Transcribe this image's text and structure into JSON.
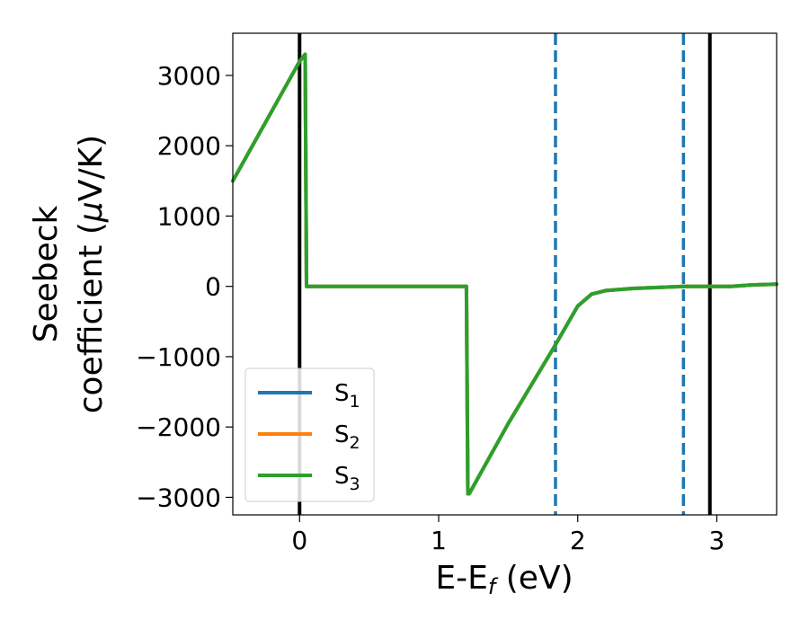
{
  "chart_data": {
    "type": "line",
    "xlabel": "E-E",
    "xlabel_sub": "f",
    "xlabel_unit": " (eV)",
    "ylabel_line1": "Seebeck",
    "ylabel_line2_prefix": "coefficient  (",
    "ylabel_mu": "μ",
    "ylabel_line2_suffix": "V/K)",
    "xlim": [
      -0.48,
      3.43
    ],
    "ylim": [
      -3250,
      3600
    ],
    "x_ticks": [
      0,
      1,
      2,
      3
    ],
    "x_tick_labels": [
      "0",
      "1",
      "2",
      "3"
    ],
    "y_ticks": [
      -3000,
      -2000,
      -1000,
      0,
      1000,
      2000,
      3000
    ],
    "y_tick_labels": [
      "−3000",
      "−2000",
      "−1000",
      "0",
      "1000",
      "2000",
      "3000"
    ],
    "grid": false,
    "legend_position": "lower-left",
    "series": [
      {
        "name": "S",
        "subscript": "1",
        "color": "#1f77b4",
        "x": [
          -0.48,
          0.0,
          0.04,
          0.05,
          0.1,
          0.5,
          1.0,
          1.2,
          1.21,
          1.22,
          1.5,
          1.84,
          2.0,
          2.1,
          2.2,
          2.4,
          2.76,
          2.95,
          3.1,
          3.25,
          3.43
        ],
        "y": [
          1500,
          3200,
          3300,
          0,
          0,
          0,
          0,
          0,
          -2950,
          -2950,
          -1950,
          -830,
          -280,
          -110,
          -60,
          -30,
          0,
          0,
          0,
          20,
          30
        ]
      },
      {
        "name": "S",
        "subscript": "2",
        "color": "#ff7f0e",
        "x": [
          -0.48,
          0.0,
          0.04,
          0.05,
          0.1,
          0.5,
          1.0,
          1.2,
          1.21,
          1.22,
          1.5,
          1.84,
          2.0,
          2.1,
          2.2,
          2.4,
          2.76,
          2.95,
          3.1,
          3.25,
          3.43
        ],
        "y": [
          1500,
          3200,
          3300,
          0,
          0,
          0,
          0,
          0,
          -2950,
          -2950,
          -1950,
          -830,
          -280,
          -110,
          -60,
          -30,
          0,
          0,
          0,
          20,
          30
        ]
      },
      {
        "name": "S",
        "subscript": "3",
        "color": "#2ca02c",
        "x": [
          -0.48,
          0.0,
          0.04,
          0.05,
          0.1,
          0.5,
          1.0,
          1.2,
          1.21,
          1.22,
          1.5,
          1.84,
          2.0,
          2.1,
          2.2,
          2.4,
          2.76,
          2.95,
          3.1,
          3.25,
          3.43
        ],
        "y": [
          1500,
          3200,
          3300,
          0,
          0,
          0,
          0,
          0,
          -2950,
          -2950,
          -1950,
          -830,
          -280,
          -110,
          -60,
          -30,
          0,
          0,
          0,
          20,
          30
        ]
      }
    ],
    "vertical_lines": [
      {
        "x": 0.0,
        "style": "solid",
        "color": "#000000"
      },
      {
        "x": 1.84,
        "style": "dashed",
        "color": "#1f77b4"
      },
      {
        "x": 2.76,
        "style": "dashed",
        "color": "#1f77b4"
      },
      {
        "x": 2.95,
        "style": "solid",
        "color": "#000000"
      }
    ]
  }
}
